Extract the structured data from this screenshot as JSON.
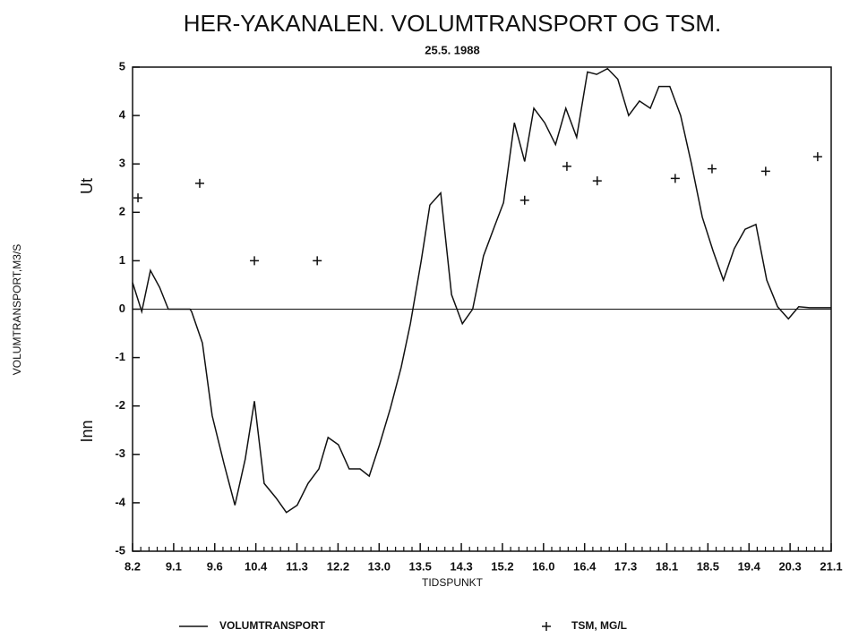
{
  "chart_data": {
    "type": "line",
    "title": "HER-YAKANALEN. VOLUMTRANSPORT OG TSM.",
    "subtitle": "25.5. 1988",
    "x_label": "TIDSPUNKT",
    "y_label": "VOLUMTRANSPORT,M3/S",
    "annotations": [
      "Ut",
      "Inn"
    ],
    "categories": [
      "8.2",
      "9.1",
      "9.6",
      "10.4",
      "11.3",
      "12.2",
      "13.0",
      "13.5",
      "14.3",
      "15.2",
      "16.0",
      "16.4",
      "17.3",
      "18.1",
      "18.5",
      "19.4",
      "20.3",
      "21.1"
    ],
    "xlim": [
      8.2,
      21.1
    ],
    "ylim": [
      -5,
      5
    ],
    "yticks": [
      -5,
      -4,
      -3,
      -2,
      -1,
      0,
      1,
      2,
      3,
      4,
      5
    ],
    "series": [
      {
        "name": "VOLUMTRANSPORT",
        "color": "#111111",
        "marker": "line",
        "x": [
          8.2,
          8.37,
          8.53,
          8.7,
          8.86,
          9.06,
          9.26,
          9.29,
          9.49,
          9.67,
          9.89,
          10.09,
          10.28,
          10.45,
          10.63,
          10.85,
          11.04,
          11.24,
          11.44,
          11.64,
          11.81,
          12.0,
          12.2,
          12.4,
          12.57,
          12.76,
          12.96,
          13.16,
          13.33,
          13.53,
          13.69,
          13.89,
          14.09,
          14.29,
          14.48,
          14.68,
          14.88,
          15.05,
          15.25,
          15.44,
          15.61,
          15.81,
          16.01,
          16.2,
          16.4,
          16.6,
          16.77,
          16.97,
          17.16,
          17.36,
          17.56,
          17.76,
          17.92,
          18.12,
          18.32,
          18.52,
          18.72,
          18.92,
          19.11,
          19.31,
          19.51,
          19.71,
          19.91,
          20.11,
          20.31,
          20.5,
          20.7,
          20.9,
          21.1
        ],
        "values": [
          0.55,
          -0.05,
          0.8,
          0.45,
          0,
          0,
          0,
          -0.05,
          -0.7,
          -2.2,
          -3.2,
          -4.05,
          -3.1,
          -1.9,
          -3.6,
          -3.9,
          -4.2,
          -4.05,
          -3.6,
          -3.3,
          -2.65,
          -2.8,
          -3.3,
          -3.3,
          -3.45,
          -2.8,
          -2.05,
          -1.2,
          -0.3,
          1.0,
          2.15,
          2.4,
          0.3,
          -0.3,
          0,
          1.1,
          1.7,
          2.2,
          3.85,
          3.05,
          4.15,
          3.85,
          3.4,
          4.15,
          3.55,
          4.9,
          4.85,
          4.97,
          4.75,
          4.0,
          4.3,
          4.15,
          4.6,
          4.6,
          4.0,
          3.0,
          1.9,
          1.2,
          0.6,
          1.25,
          1.65,
          1.75,
          0.6,
          0.05,
          -0.2,
          0.05,
          0.03,
          0.03,
          0.03
        ]
      },
      {
        "name": "TSM, MG/L",
        "color": "#111111",
        "marker": "plus",
        "x": [
          8.3,
          9.44,
          10.45,
          11.61,
          15.44,
          16.22,
          16.78,
          18.22,
          18.9,
          19.89,
          20.85
        ],
        "values": [
          2.3,
          2.6,
          1.0,
          1.0,
          2.25,
          2.95,
          2.65,
          2.7,
          2.9,
          2.85,
          3.15
        ]
      }
    ]
  }
}
